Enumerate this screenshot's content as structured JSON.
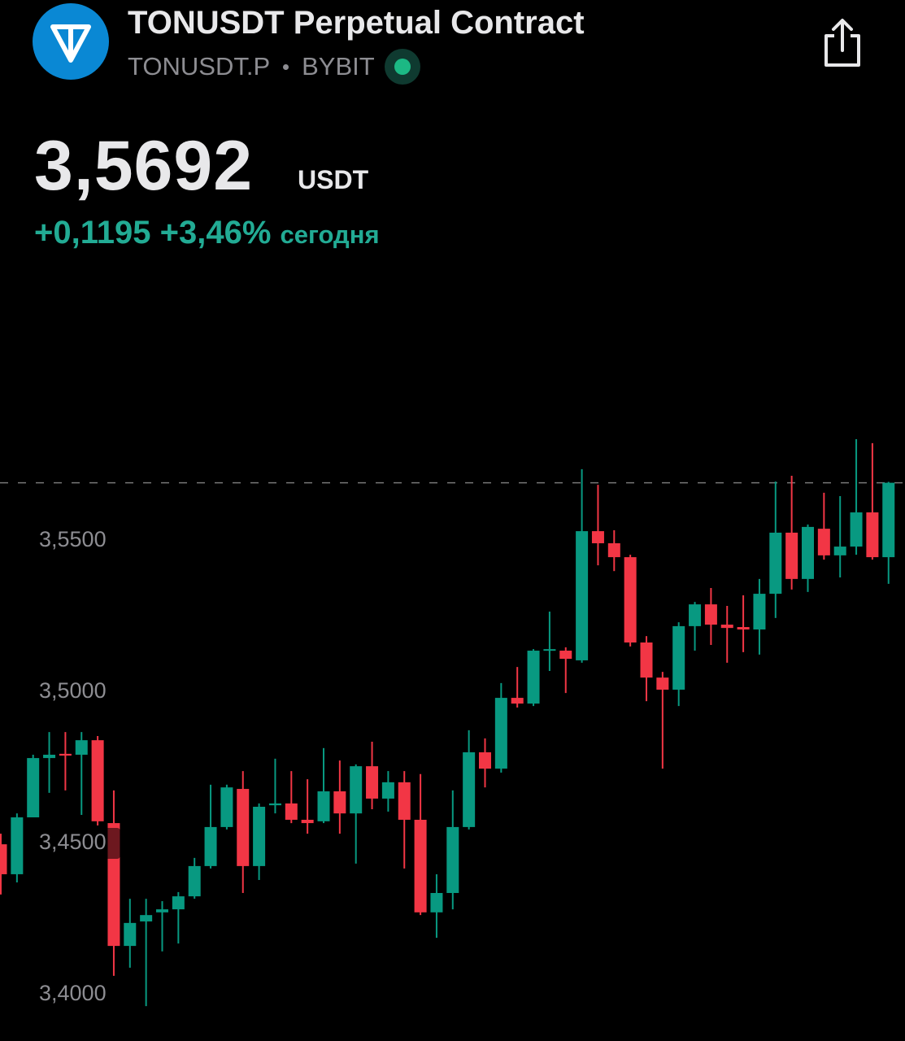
{
  "header": {
    "title": "TONUSDT Perpetual Contract",
    "symbol": "TONUSDT.P",
    "exchange": "BYBIT",
    "price": "3,5692",
    "currency": "USDT",
    "change": "+0,1195",
    "change_percent": "+3,46%",
    "period": "сегодня"
  },
  "chart_data": {
    "type": "candlestick",
    "up_color": "#089981",
    "down_color": "#f23645",
    "grid": false,
    "ylim": [
      3.385,
      3.64
    ],
    "yticks": [
      {
        "value": 3.4,
        "label": "3,4000"
      },
      {
        "value": 3.45,
        "label": "3,4500"
      },
      {
        "value": 3.5,
        "label": "3,5000"
      },
      {
        "value": 3.55,
        "label": "3,5500"
      }
    ],
    "open": [
      3.4497,
      3.4398,
      3.4586,
      3.4782,
      3.4796,
      3.4793,
      3.4841,
      3.4567,
      3.4161,
      3.4242,
      3.4272,
      3.4282,
      3.4325,
      3.4425,
      3.4554,
      3.468,
      3.4425,
      3.4626,
      3.4632,
      3.4578,
      3.4573,
      3.4672,
      3.4599,
      3.4755,
      3.4648,
      3.4702,
      3.4578,
      3.4272,
      3.4336,
      3.4554,
      3.4801,
      3.4747,
      3.4981,
      3.4962,
      3.5137,
      3.5137,
      3.5105,
      3.5532,
      3.5492,
      3.5446,
      3.5164,
      3.5048,
      3.5008,
      3.5218,
      3.529,
      3.5223,
      3.5215,
      3.5207,
      3.5325,
      3.5527,
      3.5374,
      3.554,
      3.5452,
      3.5481,
      3.5594,
      3.5446
    ],
    "high": [
      3.4532,
      3.4599,
      3.4793,
      3.4868,
      3.4868,
      3.4868,
      3.4855,
      3.4675,
      3.4317,
      3.4317,
      3.4309,
      3.4339,
      3.4452,
      3.4694,
      3.4694,
      3.4739,
      3.4632,
      3.478,
      3.4739,
      3.4712,
      3.4815,
      3.4774,
      3.4761,
      3.4836,
      3.4739,
      3.4739,
      3.4729,
      3.4398,
      3.4675,
      3.4874,
      3.4847,
      3.503,
      3.5083,
      3.5142,
      3.5266,
      3.5148,
      3.5737,
      3.5685,
      3.5535,
      3.5454,
      3.5185,
      3.5067,
      3.5231,
      3.5298,
      3.5344,
      3.5285,
      3.532,
      3.5374,
      3.5696,
      3.5715,
      3.5554,
      3.5659,
      3.5648,
      3.5836,
      3.5823,
      3.5695
    ],
    "low": [
      3.4331,
      3.4371,
      3.4586,
      3.4667,
      3.4675,
      3.4594,
      3.4559,
      3.4062,
      3.4089,
      3.3962,
      3.4143,
      3.4169,
      3.4317,
      3.4417,
      3.4546,
      3.4336,
      3.4379,
      3.4599,
      3.4567,
      3.4532,
      3.4567,
      3.4532,
      3.4433,
      3.4613,
      3.4605,
      3.4417,
      3.4263,
      3.4188,
      3.4282,
      3.4546,
      3.4685,
      3.4734,
      3.4949,
      3.4954,
      3.507,
      3.4997,
      3.5097,
      3.5419,
      3.54,
      3.5151,
      3.497,
      3.4747,
      3.4954,
      3.5137,
      3.5156,
      3.5097,
      3.5132,
      3.5124,
      3.5245,
      3.5339,
      3.5331,
      3.5438,
      3.5379,
      3.5454,
      3.5438,
      3.5358
    ],
    "close": [
      3.4398,
      3.4586,
      3.4782,
      3.4793,
      3.479,
      3.4841,
      3.4573,
      3.4161,
      3.4237,
      3.4263,
      3.4282,
      3.4325,
      3.4425,
      3.4554,
      3.4685,
      3.4425,
      3.4621,
      3.4632,
      3.4578,
      3.4567,
      3.4672,
      3.4599,
      3.4755,
      3.4648,
      3.4702,
      3.4578,
      3.4272,
      3.4336,
      3.4554,
      3.4801,
      3.4747,
      3.4981,
      3.4962,
      3.5137,
      3.5142,
      3.511,
      3.5532,
      3.5492,
      3.5446,
      3.5164,
      3.5048,
      3.5008,
      3.5218,
      3.529,
      3.5223,
      3.5212,
      3.5207,
      3.5325,
      3.5527,
      3.5374,
      3.5546,
      3.5452,
      3.5481,
      3.5594,
      3.5446,
      3.5692
    ]
  }
}
